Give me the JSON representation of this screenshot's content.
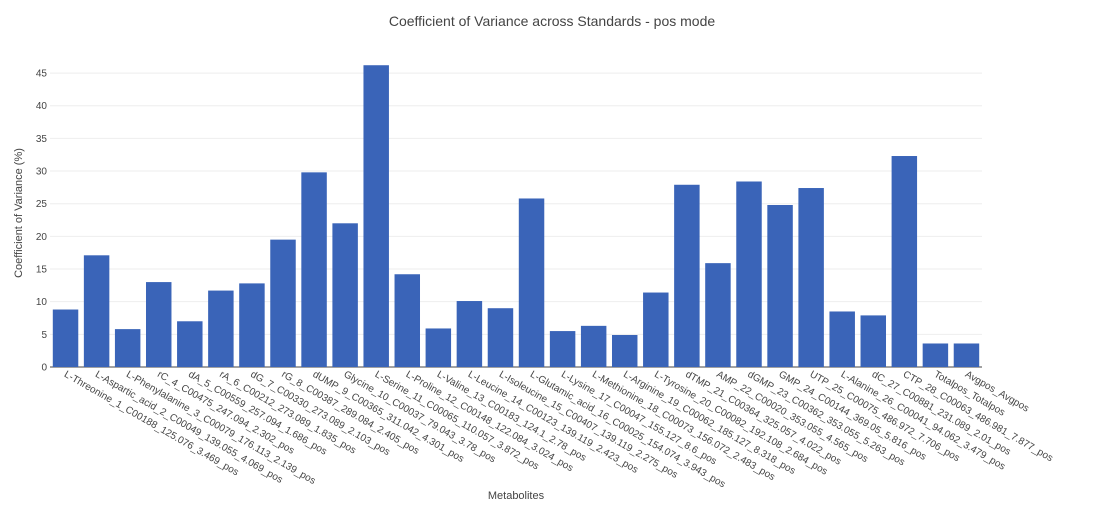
{
  "chart_data": {
    "type": "bar",
    "title": "Coefficient of Variance across Standards - pos mode",
    "xlabel": "Metabolites",
    "ylabel": "Coefficient of Variance (%)",
    "ylim": [
      0,
      47
    ],
    "yticks": [
      0,
      5,
      10,
      15,
      20,
      25,
      30,
      35,
      40,
      45
    ],
    "grid": true,
    "bar_color": "#3a64b8",
    "categories": [
      "L-Threonine_1_C00188_125.076_3.469_pos",
      "L-Aspartic_acid_2_C00049_139.055_4.069_pos",
      "L-Phenylalanine_3_C00079_176.113_2.139_pos",
      "rC_4_C00475_247.094_2.302_pos",
      "dA_5_C00559_257.094_1.686_pos",
      "rA_6_C00212_273.089_1.835_pos",
      "dG_7_C00330_273.089_2.103_pos",
      "rG_8_C00387_289.084_2.405_pos",
      "dUMP_9_C00365_311.042_4.301_pos",
      "Glycine_10_C00037_79.043_3.78_pos",
      "L-Serine_11_C00065_110.057_3.872_pos",
      "L-Proline_12_C00148_122.084_3.024_pos",
      "L-Valine_13_C00183_124.1_2.78_pos",
      "L-Leucine_14_C00123_139.119_2.423_pos",
      "L-Isoleucine_15_C00407_139.119_2.275_pos",
      "L-Glutamic_acid_16_C00025_154.074_3.943_pos",
      "L-Lysine_17_C00047_155.127_8.6_pos",
      "L-Methionine_18_C00073_156.072_2.483_pos",
      "L-Arginine_19_C00062_185.127_8.318_pos",
      "L-Tyrosine_20_C00082_192.108_2.684_pos",
      "dTMP_21_C00364_325.057_4.022_pos",
      "AMP_22_C00020_353.055_4.565_pos",
      "dGMP_23_C00362_353.055_5.263_pos",
      "GMP_24_C00144_369.05_5.816_pos",
      "UTP_25_C00075_486.972_7.706_pos",
      "L-Alanine_26_C00041_94.062_3.479_pos",
      "dC_27_C00881_231.089_2.01_pos",
      "CTP_28_C00063_486.981_7.877_pos",
      "Totalpos_Totalpos",
      "Avgpos_Avgpos"
    ],
    "values": [
      8.8,
      17.1,
      5.8,
      13.0,
      7.0,
      11.7,
      12.8,
      19.5,
      29.8,
      22.0,
      46.2,
      14.2,
      5.9,
      10.1,
      9.0,
      25.8,
      5.5,
      6.3,
      4.9,
      11.4,
      27.9,
      15.9,
      28.4,
      24.8,
      27.4,
      8.5,
      7.9,
      32.3,
      3.6,
      3.6
    ]
  }
}
